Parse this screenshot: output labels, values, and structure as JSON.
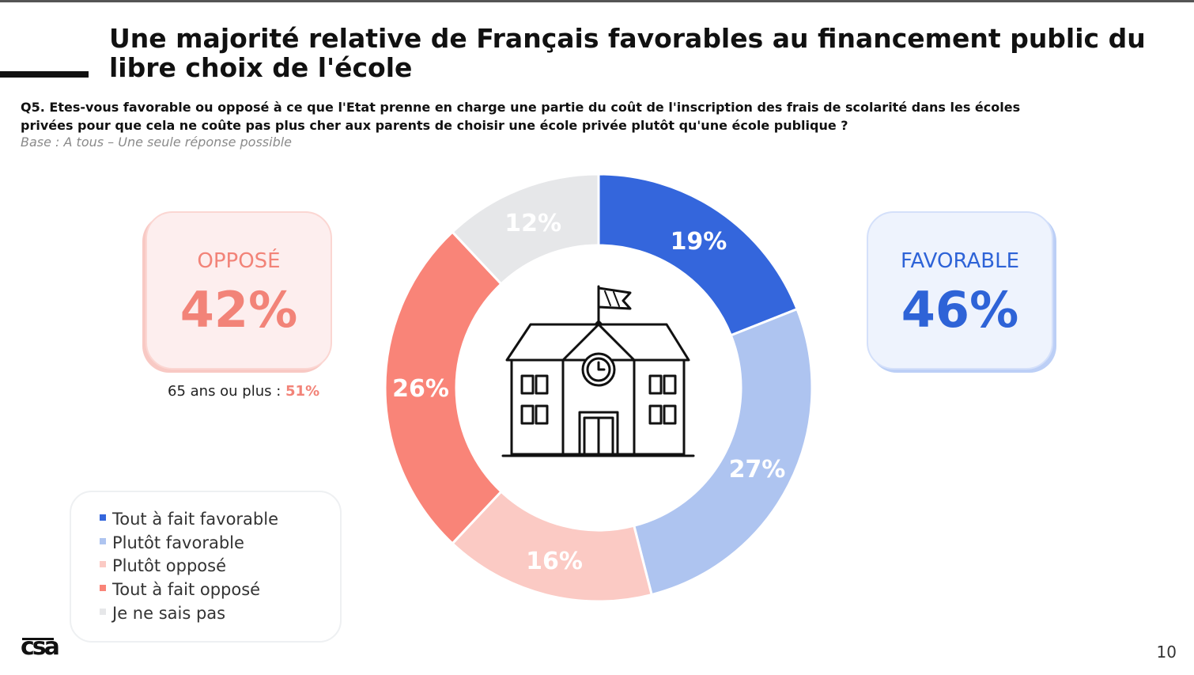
{
  "slide": {
    "title": "Une majorité relative de Français favorables au financement public du libre choix de l'école",
    "question": "Q5. Etes-vous favorable ou opposé à ce que l'Etat prenne en charge une partie du coût de l'inscription des frais de scolarité dans les écoles privées pour que cela ne coûte pas plus cher aux parents de choisir une école privée plutôt qu'une école publique ?",
    "base": "Base : A tous – Une seule réponse possible",
    "page_number": "10",
    "logo": "csa"
  },
  "summary": {
    "oppose": {
      "label": "OPPOSÉ",
      "value": "42%"
    },
    "favorable": {
      "label": "FAVORABLE",
      "value": "46%"
    },
    "sub_stat": {
      "label": "65 ans ou plus : ",
      "value": "51%"
    }
  },
  "colors": {
    "tout_favorable": "#3466dc",
    "plutot_favorable": "#aec4f0",
    "plutot_oppose": "#fbcac4",
    "tout_oppose": "#f98478",
    "nsp": "#e6e7e9"
  },
  "center_icon": "school-building-icon",
  "chart_data": {
    "type": "pie",
    "donut": true,
    "categories": [
      "Tout à fait favorable",
      "Plutôt favorable",
      "Plutôt opposé",
      "Tout à fait opposé",
      "Je ne sais pas"
    ],
    "values": [
      19,
      27,
      16,
      26,
      12
    ],
    "labels": [
      "19%",
      "27%",
      "16%",
      "26%",
      "12%"
    ],
    "colors": [
      "#3466dc",
      "#aec4f0",
      "#fbcac4",
      "#f98478",
      "#e6e7e9"
    ],
    "legend": "bottom-left"
  }
}
